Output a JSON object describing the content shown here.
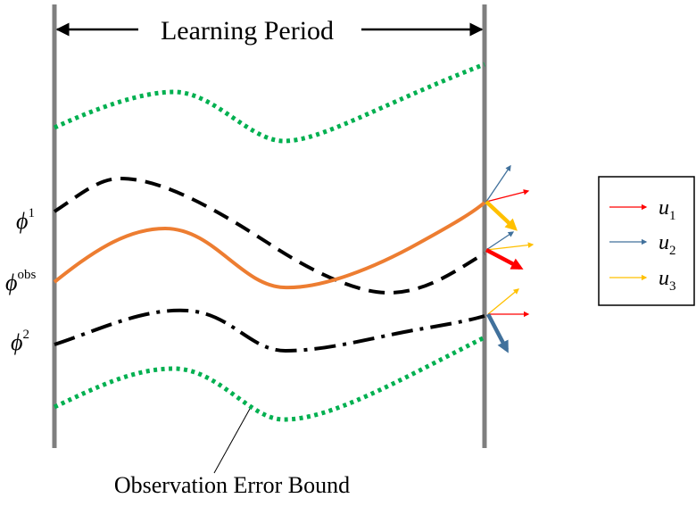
{
  "title": "Learning Period",
  "caption": "Observation Error Bound",
  "phi_labels": {
    "phi1": {
      "base": "ϕ",
      "sup": "1"
    },
    "phiobs": {
      "base": "ϕ",
      "sup": "obs"
    },
    "phi2": {
      "base": "ϕ",
      "sup": "2"
    }
  },
  "legend": [
    {
      "base": "u",
      "sub": "1",
      "color": "#ff0000"
    },
    {
      "base": "u",
      "sub": "2",
      "color": "#41719c"
    },
    {
      "base": "u",
      "sub": "3",
      "color": "#ffc000"
    }
  ],
  "colors": {
    "boundary": "#7f7f7f",
    "error_bound": "#00b050",
    "observed": "#ed7d31",
    "trajectory": "#000000"
  }
}
